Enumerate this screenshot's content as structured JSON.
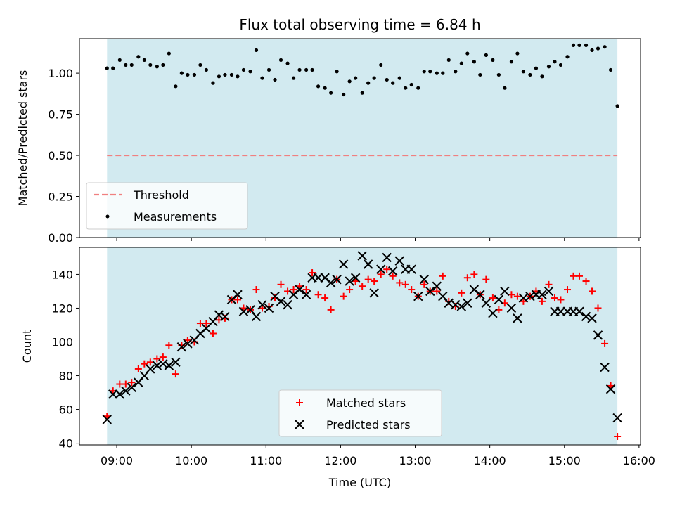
{
  "chart_data": [
    {
      "type": "scatter",
      "title": "Flux total observing time = 6.84 h",
      "xlabel": "",
      "ylabel": "Matched/Predicted stars",
      "xlim": [
        8.5,
        16.02
      ],
      "ylim": [
        0.0,
        1.21
      ],
      "yticks": [
        "0.00",
        "0.25",
        "0.50",
        "0.75",
        "1.00"
      ],
      "ytick_values": [
        0.0,
        0.25,
        0.5,
        0.75,
        1.0
      ],
      "shaded_span": [
        8.87,
        15.71
      ],
      "shade_color": "#d2eaf0",
      "threshold": {
        "name": "Threshold",
        "value": 0.5,
        "color": "#f08080",
        "style": "dashed",
        "xrange": [
          8.87,
          15.71
        ]
      },
      "legend": {
        "placement": "lower-left",
        "entries": [
          "Threshold",
          "Measurements"
        ]
      },
      "series": [
        {
          "name": "Measurements",
          "marker": "dot",
          "color": "#000000",
          "x": [
            8.87,
            8.95,
            9.04,
            9.12,
            9.2,
            9.29,
            9.37,
            9.45,
            9.54,
            9.62,
            9.7,
            9.79,
            9.87,
            9.95,
            10.04,
            10.12,
            10.2,
            10.29,
            10.37,
            10.45,
            10.54,
            10.62,
            10.7,
            10.79,
            10.87,
            10.95,
            11.04,
            11.12,
            11.2,
            11.29,
            11.37,
            11.45,
            11.54,
            11.62,
            11.7,
            11.79,
            11.87,
            11.95,
            12.04,
            12.12,
            12.2,
            12.29,
            12.37,
            12.45,
            12.54,
            12.62,
            12.7,
            12.79,
            12.87,
            12.95,
            13.04,
            13.12,
            13.2,
            13.29,
            13.37,
            13.45,
            13.54,
            13.62,
            13.7,
            13.79,
            13.87,
            13.95,
            14.04,
            14.12,
            14.2,
            14.29,
            14.37,
            14.45,
            14.54,
            14.62,
            14.7,
            14.79,
            14.87,
            14.95,
            15.04,
            15.12,
            15.2,
            15.29,
            15.37,
            15.45,
            15.54,
            15.62,
            15.71
          ],
          "y": [
            1.03,
            1.03,
            1.08,
            1.05,
            1.05,
            1.1,
            1.08,
            1.05,
            1.04,
            1.05,
            1.12,
            0.92,
            1.0,
            0.99,
            0.99,
            1.05,
            1.02,
            0.94,
            0.98,
            0.99,
            0.99,
            0.98,
            1.02,
            1.01,
            1.14,
            0.97,
            1.02,
            0.96,
            1.08,
            1.06,
            0.97,
            1.02,
            1.02,
            1.02,
            0.92,
            0.91,
            0.88,
            1.01,
            0.87,
            0.95,
            0.97,
            0.88,
            0.94,
            0.97,
            1.05,
            0.96,
            0.94,
            0.97,
            0.91,
            0.93,
            0.91,
            1.01,
            1.01,
            1.0,
            1.0,
            1.08,
            1.01,
            1.06,
            1.12,
            1.07,
            0.99,
            1.11,
            1.08,
            0.99,
            0.91,
            1.07,
            1.12,
            1.01,
            0.99,
            1.03,
            0.98,
            1.04,
            1.07,
            1.05,
            1.1,
            1.17,
            1.17,
            1.17,
            1.14,
            1.15,
            1.16,
            1.02,
            0.8
          ]
        }
      ]
    },
    {
      "type": "scatter",
      "title": "",
      "xlabel": "Time (UTC)",
      "ylabel": "Count",
      "xlim": [
        8.5,
        16.02
      ],
      "ylim": [
        39,
        156
      ],
      "xticks": [
        "09:00",
        "10:00",
        "11:00",
        "12:00",
        "13:00",
        "14:00",
        "15:00",
        "16:00"
      ],
      "xtick_values": [
        9,
        10,
        11,
        12,
        13,
        14,
        15,
        16
      ],
      "yticks": [
        "40",
        "60",
        "80",
        "100",
        "120",
        "140"
      ],
      "ytick_values": [
        40,
        60,
        80,
        100,
        120,
        140
      ],
      "shaded_span": [
        8.87,
        15.71
      ],
      "shade_color": "#d2eaf0",
      "legend": {
        "placement": "lower-center",
        "entries": [
          "Matched stars",
          "Predicted stars"
        ]
      },
      "series": [
        {
          "name": "Matched stars",
          "marker": "plus",
          "color": "#ff0000",
          "x": [
            8.87,
            8.95,
            9.04,
            9.12,
            9.2,
            9.29,
            9.37,
            9.45,
            9.54,
            9.62,
            9.7,
            9.79,
            9.87,
            9.95,
            10.04,
            10.12,
            10.2,
            10.29,
            10.37,
            10.45,
            10.54,
            10.62,
            10.7,
            10.79,
            10.87,
            10.95,
            11.04,
            11.12,
            11.2,
            11.29,
            11.37,
            11.45,
            11.54,
            11.62,
            11.7,
            11.79,
            11.87,
            11.95,
            12.04,
            12.12,
            12.2,
            12.29,
            12.37,
            12.45,
            12.54,
            12.62,
            12.7,
            12.79,
            12.87,
            12.95,
            13.04,
            13.12,
            13.2,
            13.29,
            13.37,
            13.45,
            13.54,
            13.62,
            13.7,
            13.79,
            13.87,
            13.95,
            14.04,
            14.12,
            14.2,
            14.29,
            14.37,
            14.45,
            14.54,
            14.62,
            14.7,
            14.79,
            14.87,
            14.95,
            15.04,
            15.12,
            15.2,
            15.29,
            15.37,
            15.45,
            15.54,
            15.62,
            15.71
          ],
          "y": [
            56,
            71,
            75,
            75,
            76,
            84,
            87,
            88,
            90,
            91,
            98,
            81,
            98,
            101,
            100,
            111,
            111,
            105,
            113,
            114,
            125,
            125,
            120,
            119,
            131,
            120,
            121,
            126,
            134,
            130,
            131,
            133,
            131,
            141,
            128,
            126,
            119,
            137,
            127,
            131,
            136,
            133,
            137,
            136,
            140,
            143,
            139,
            135,
            134,
            131,
            127,
            134,
            130,
            130,
            139,
            124,
            121,
            129,
            138,
            140,
            128,
            137,
            126,
            119,
            123,
            128,
            127,
            124,
            127,
            130,
            124,
            134,
            126,
            125,
            131,
            139,
            139,
            136,
            130,
            120,
            99,
            74,
            44
          ]
        },
        {
          "name": "Predicted stars",
          "marker": "x",
          "color": "#000000",
          "x": [
            8.87,
            8.95,
            9.04,
            9.12,
            9.2,
            9.29,
            9.37,
            9.45,
            9.54,
            9.62,
            9.7,
            9.79,
            9.87,
            9.95,
            10.04,
            10.12,
            10.2,
            10.29,
            10.37,
            10.45,
            10.54,
            10.62,
            10.7,
            10.79,
            10.87,
            10.95,
            11.04,
            11.12,
            11.2,
            11.29,
            11.37,
            11.45,
            11.54,
            11.62,
            11.7,
            11.79,
            11.87,
            11.95,
            12.04,
            12.12,
            12.2,
            12.29,
            12.37,
            12.45,
            12.54,
            12.62,
            12.7,
            12.79,
            12.87,
            12.95,
            13.04,
            13.12,
            13.2,
            13.29,
            13.37,
            13.45,
            13.54,
            13.62,
            13.7,
            13.79,
            13.87,
            13.95,
            14.04,
            14.12,
            14.2,
            14.29,
            14.37,
            14.45,
            14.54,
            14.62,
            14.7,
            14.79,
            14.87,
            14.95,
            15.04,
            15.12,
            15.2,
            15.29,
            15.37,
            15.45,
            15.54,
            15.62,
            15.71
          ],
          "y": [
            54,
            69,
            69,
            71,
            73,
            76,
            80,
            84,
            86,
            87,
            86,
            88,
            97,
            99,
            101,
            105,
            108,
            112,
            116,
            115,
            125,
            128,
            118,
            119,
            115,
            122,
            120,
            127,
            124,
            122,
            128,
            131,
            128,
            138,
            138,
            138,
            135,
            137,
            146,
            136,
            138,
            151,
            146,
            129,
            143,
            150,
            142,
            148,
            143,
            143,
            127,
            137,
            130,
            133,
            127,
            123,
            122,
            121,
            123,
            131,
            128,
            123,
            117,
            125,
            130,
            120,
            114,
            126,
            127,
            128,
            128,
            130,
            118,
            118,
            118,
            118,
            118,
            115,
            114,
            104,
            85,
            72,
            55
          ]
        }
      ]
    }
  ]
}
